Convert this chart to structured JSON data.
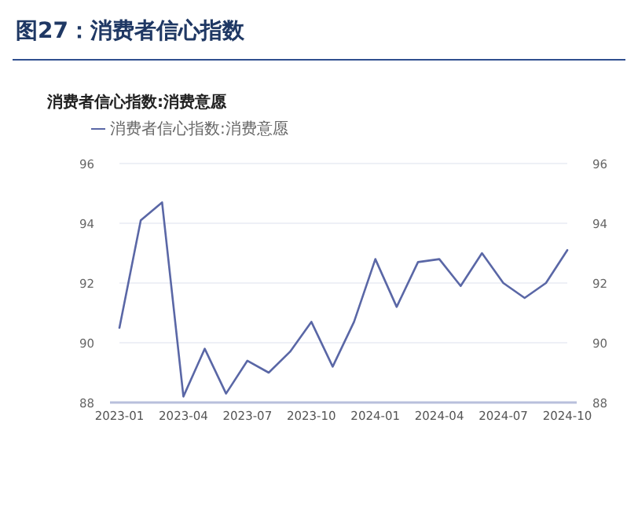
{
  "chart_data": {
    "type": "line",
    "title": "图27：消费者信心指数",
    "subtitle": "消费者信心指数:消费意愿",
    "x": [
      "2023-01",
      "2023-02",
      "2023-03",
      "2023-04",
      "2023-05",
      "2023-06",
      "2023-07",
      "2023-08",
      "2023-09",
      "2023-10",
      "2023-11",
      "2023-12",
      "2024-01",
      "2024-02",
      "2024-03",
      "2024-04",
      "2024-05",
      "2024-06",
      "2024-07",
      "2024-08",
      "2024-09",
      "2024-10"
    ],
    "series": [
      {
        "name": "消费者信心指数:消费意愿",
        "color": "#5a67a6",
        "values": [
          90.5,
          94.1,
          94.7,
          88.2,
          89.8,
          88.3,
          89.4,
          89.0,
          89.7,
          90.7,
          89.2,
          90.7,
          92.8,
          91.2,
          92.7,
          92.8,
          91.9,
          93.0,
          92.0,
          91.5,
          92.0,
          93.1
        ]
      }
    ],
    "xlim": [
      "2023-01",
      "2024-10"
    ],
    "xticks": [
      "2023-01",
      "2023-04",
      "2023-07",
      "2023-10",
      "2024-01",
      "2024-04",
      "2024-07",
      "2024-10"
    ],
    "ylim": [
      88,
      96
    ],
    "yticks": [
      88,
      90,
      92,
      94,
      96
    ],
    "y2lim": [
      88,
      96
    ],
    "y2ticks": [
      88,
      90,
      92,
      94,
      96
    ],
    "grid": "y",
    "legend": "top left",
    "marker": "none",
    "line_style": "solid"
  }
}
